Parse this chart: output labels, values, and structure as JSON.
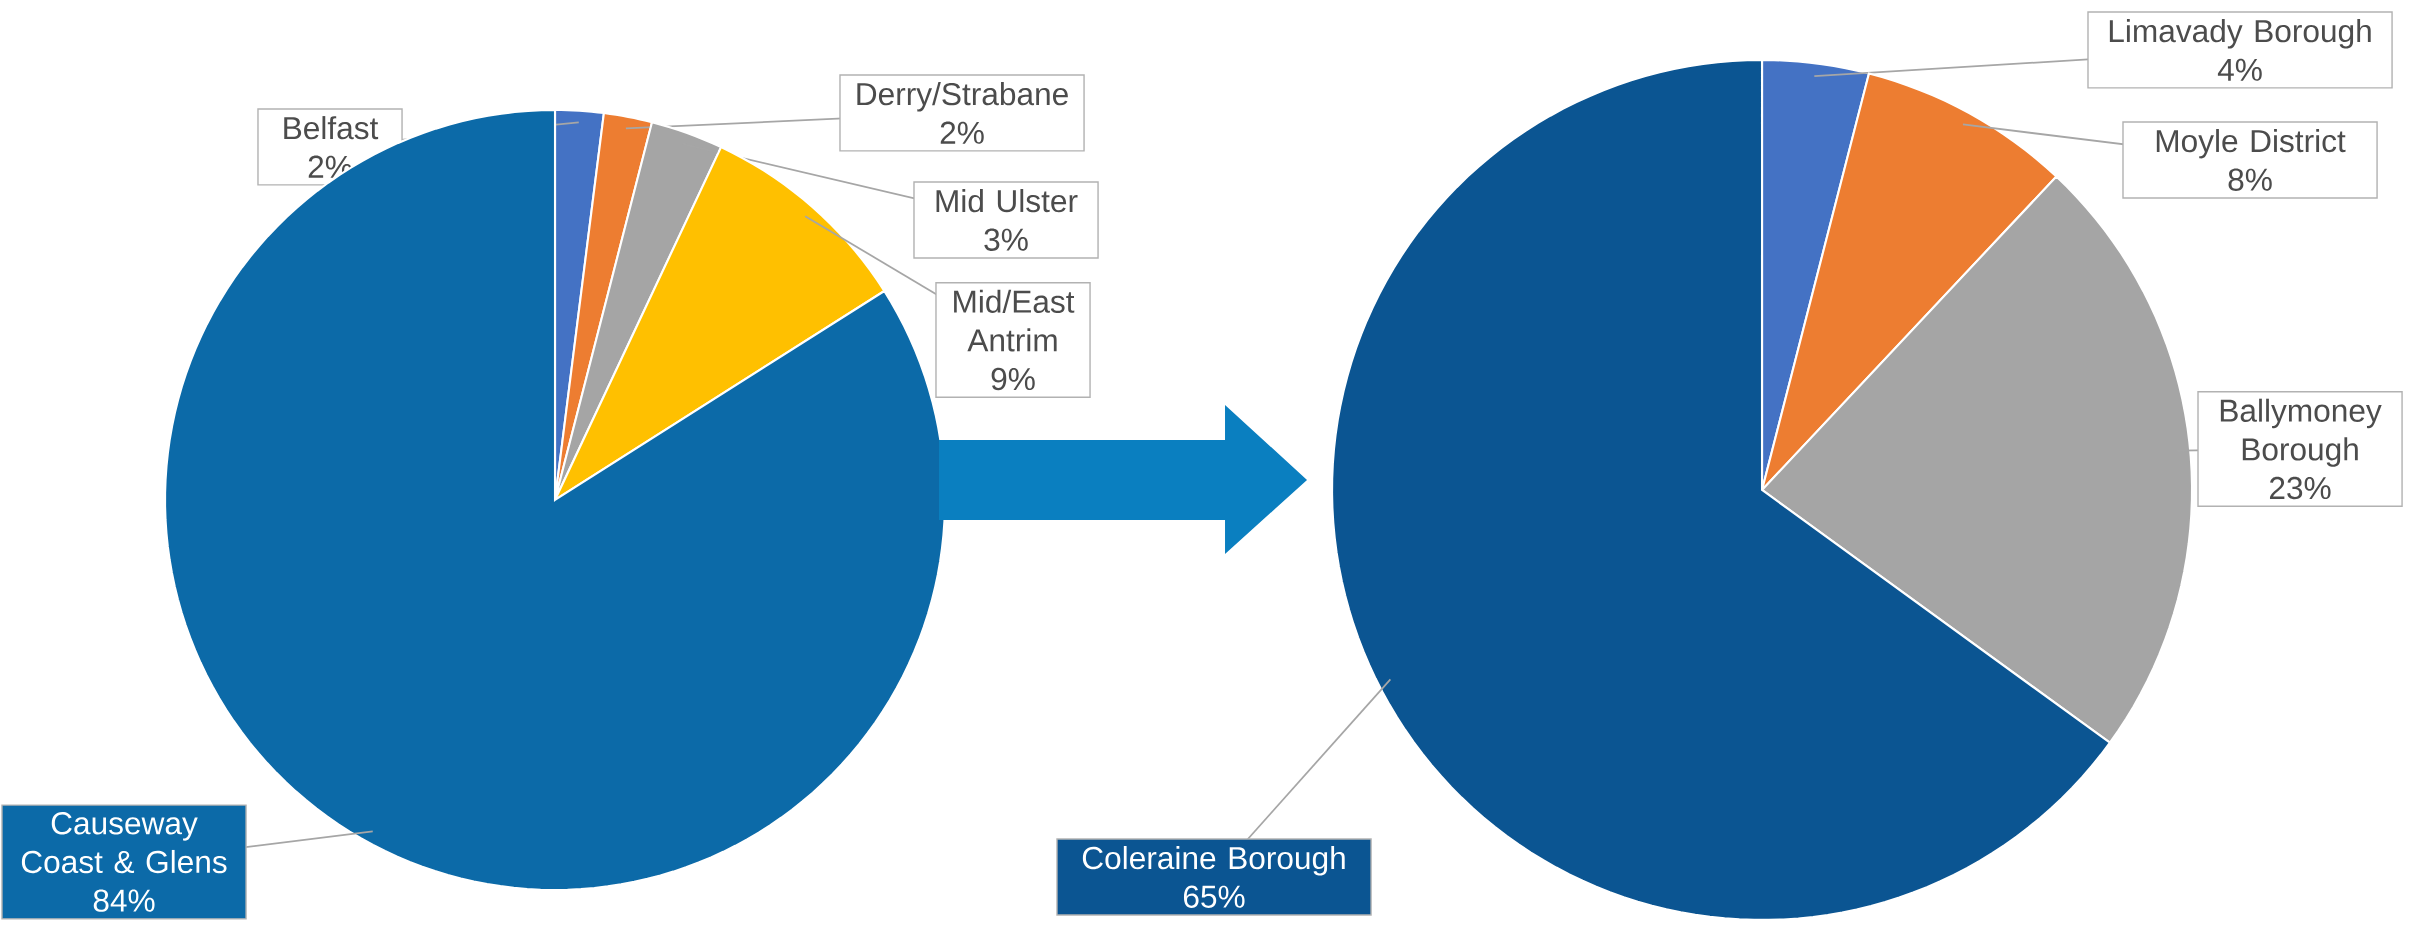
{
  "chart_data": [
    {
      "type": "pie",
      "categories": [
        "Belfast",
        "Derry/Strabane",
        "Mid Ulster",
        "Mid/East Antrim",
        "Causeway Coast & Glens"
      ],
      "values": [
        2,
        2,
        3,
        9,
        84
      ],
      "value_labels": [
        "2%",
        "2%",
        "3%",
        "9%",
        "84%"
      ],
      "colors": [
        "#4472c4",
        "#ed7d31",
        "#a5a5a5",
        "#ffc000",
        "#0c6aa8"
      ]
    },
    {
      "type": "pie",
      "categories": [
        "Limavady Borough",
        "Moyle District",
        "Ballymoney Borough",
        "Coleraine Borough"
      ],
      "values": [
        4,
        8,
        23,
        65
      ],
      "value_labels": [
        "4%",
        "8%",
        "23%",
        "65%"
      ],
      "colors": [
        "#4472c4",
        "#ed7d31",
        "#a5a5a5",
        "#0b5592"
      ]
    }
  ]
}
